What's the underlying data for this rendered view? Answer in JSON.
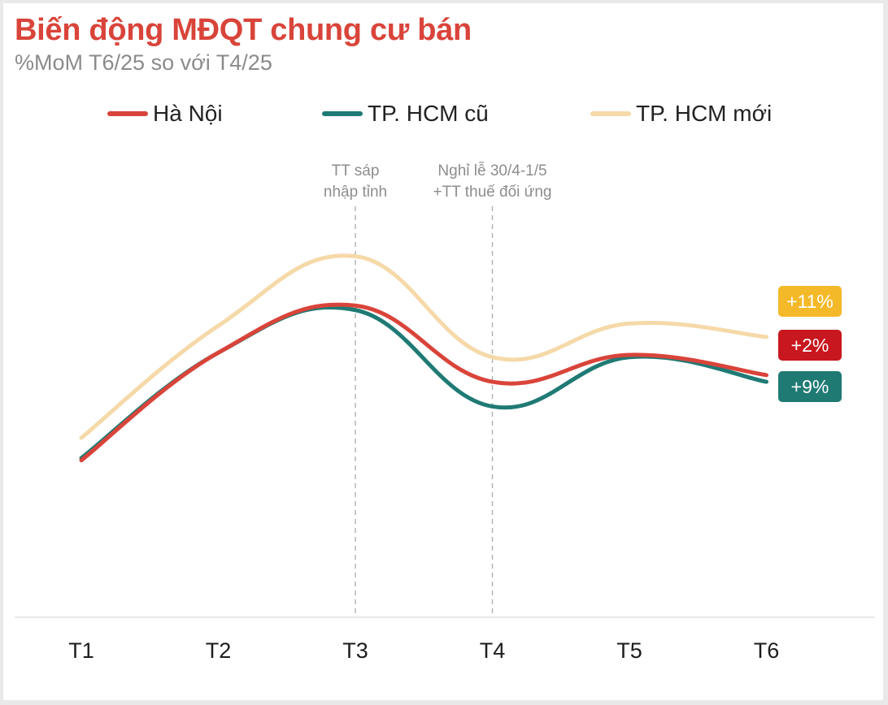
{
  "title": "Biến động MĐQT chung cư bán",
  "subtitle": "%MoM T6/25 so với T4/25",
  "colors": {
    "hanoi": "#d9443a",
    "hcm_old": "#1f7a74",
    "hcm_new": "#f5d9a8",
    "badge_new": "#f4b928",
    "badge_hanoi": "#c8171e",
    "badge_old": "#1f7a74"
  },
  "chart_data": {
    "type": "line",
    "categories": [
      "T1",
      "T2",
      "T3",
      "T4",
      "T5",
      "T6"
    ],
    "series": [
      {
        "name": "Hà Nội",
        "color": "#d9443a",
        "values": [
          10,
          58,
          79,
          45,
          57,
          48
        ],
        "end_label": "+2%"
      },
      {
        "name": "TP. HCM cũ",
        "color": "#1f7a74",
        "values": [
          11,
          58,
          77,
          34,
          56,
          45
        ],
        "end_label": "+9%"
      },
      {
        "name": "TP. HCM mới",
        "color": "#f5d9a8",
        "values": [
          20,
          70,
          101,
          56,
          71,
          65
        ],
        "end_label": "+11%"
      }
    ],
    "annotations": [
      {
        "category": "T3",
        "lines": [
          "TT sáp",
          "nhập tỉnh"
        ]
      },
      {
        "category": "T4",
        "lines": [
          "Nghỉ lễ 30/4-1/5",
          "+TT thuế đối ứng"
        ]
      }
    ],
    "ylim": [
      -60,
      145
    ],
    "grid": false,
    "legend_position": "top"
  }
}
